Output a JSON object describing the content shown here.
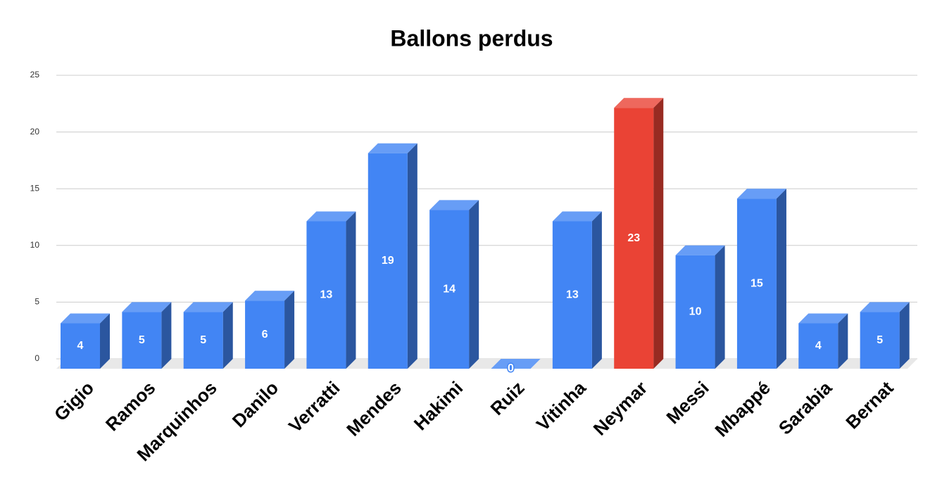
{
  "chart_data": {
    "type": "bar3d",
    "title": "Ballons perdus",
    "categories": [
      "Gigio",
      "Ramos",
      "Marquinhos",
      "Danilo",
      "Verratti",
      "Mendes",
      "Hakimi",
      "Ruiz",
      "Vitinha",
      "Neymar",
      "Messi",
      "Mbappé",
      "Sarabia",
      "Bernat"
    ],
    "values": [
      4,
      5,
      5,
      6,
      13,
      19,
      14,
      0,
      13,
      23,
      10,
      15,
      4,
      5
    ],
    "colors": [
      "#4285f4",
      "#4285f4",
      "#4285f4",
      "#4285f4",
      "#4285f4",
      "#4285f4",
      "#4285f4",
      "#4285f4",
      "#4285f4",
      "#ea4335",
      "#4285f4",
      "#4285f4",
      "#4285f4",
      "#4285f4"
    ],
    "ylim": [
      0,
      25
    ],
    "yticks": [
      0,
      5,
      10,
      15,
      20,
      25
    ],
    "grid": true
  }
}
